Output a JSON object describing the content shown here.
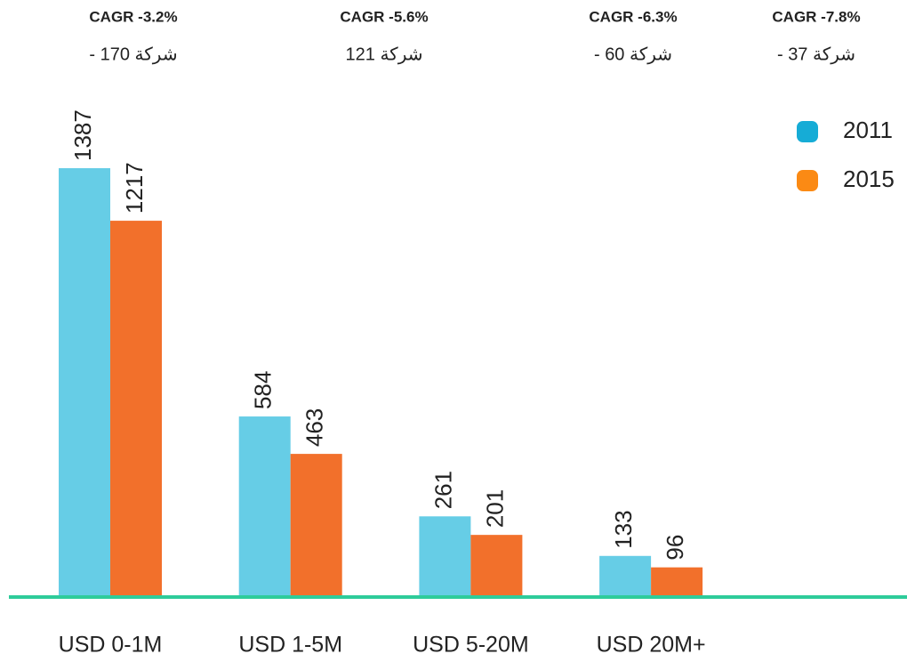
{
  "chart_data": {
    "type": "bar",
    "categories": [
      "USD 0-1M",
      "USD 1-5M",
      "USD 5-20M",
      "USD 20M+"
    ],
    "series": [
      {
        "name": "2011",
        "color": "#66cde6",
        "values": [
          1387,
          584,
          261,
          133
        ]
      },
      {
        "name": "2015",
        "color": "#f2702b",
        "values": [
          1217,
          463,
          201,
          96
        ]
      }
    ],
    "annotations": [
      {
        "cagr": "CAGR -3.2%",
        "companies": "شركة 170 -"
      },
      {
        "cagr": "CAGR -5.6%",
        "companies": "شركة 121"
      },
      {
        "cagr": "CAGR -6.3%",
        "companies": "شركة 60 -"
      },
      {
        "cagr": "CAGR -7.8%",
        "companies": "شركة 37 -"
      }
    ],
    "ylim": [
      0,
      1600
    ],
    "axis_color": "#2ecc9a",
    "legend": "top-right"
  }
}
